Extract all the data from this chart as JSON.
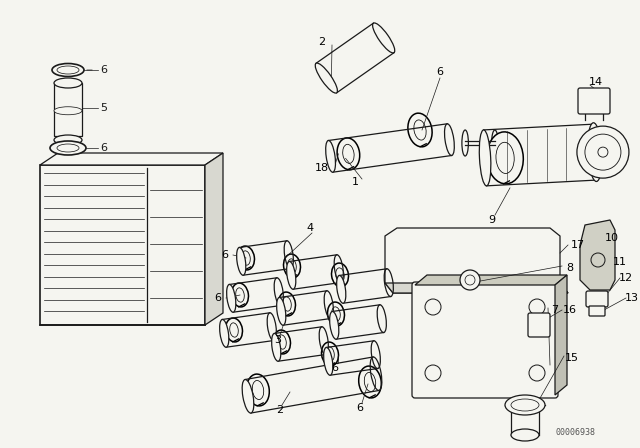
{
  "background_color": "#f5f5f0",
  "line_color": "#1a1a1a",
  "watermark": "00006938",
  "fig_w": 6.4,
  "fig_h": 4.48,
  "dpi": 100
}
